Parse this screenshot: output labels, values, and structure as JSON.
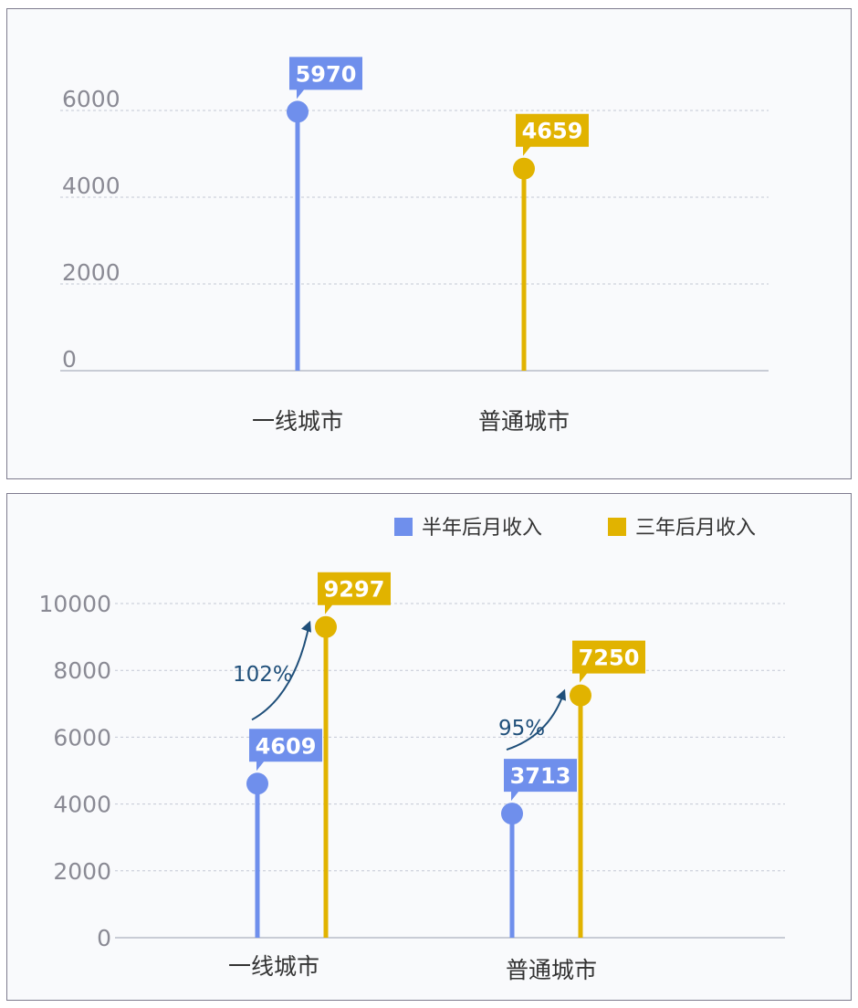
{
  "chart_data": [
    {
      "type": "lollipop",
      "title": "",
      "xlabel": "",
      "ylabel": "",
      "categories": [
        "一线城市",
        "普通城市"
      ],
      "values": [
        5970,
        4659
      ],
      "ylim": [
        0,
        6000
      ],
      "yticks": [
        0,
        2000,
        4000,
        6000
      ],
      "colors": [
        "#6f8fec",
        "#e1b300"
      ],
      "grid": true,
      "legend": "none"
    },
    {
      "type": "lollipop",
      "title": "",
      "xlabel": "",
      "ylabel": "",
      "categories": [
        "一线城市",
        "普通城市"
      ],
      "series": [
        {
          "name": "半年后月收入",
          "values": [
            4609,
            3713
          ],
          "color": "#6f8fec"
        },
        {
          "name": "三年后月收入",
          "values": [
            9297,
            7250
          ],
          "color": "#e1b300"
        }
      ],
      "ylim": [
        0,
        10000
      ],
      "yticks": [
        0,
        2000,
        4000,
        6000,
        8000,
        10000
      ],
      "annotations": [
        "102%",
        "95%"
      ],
      "grid": true,
      "legend": "top-right"
    }
  ]
}
